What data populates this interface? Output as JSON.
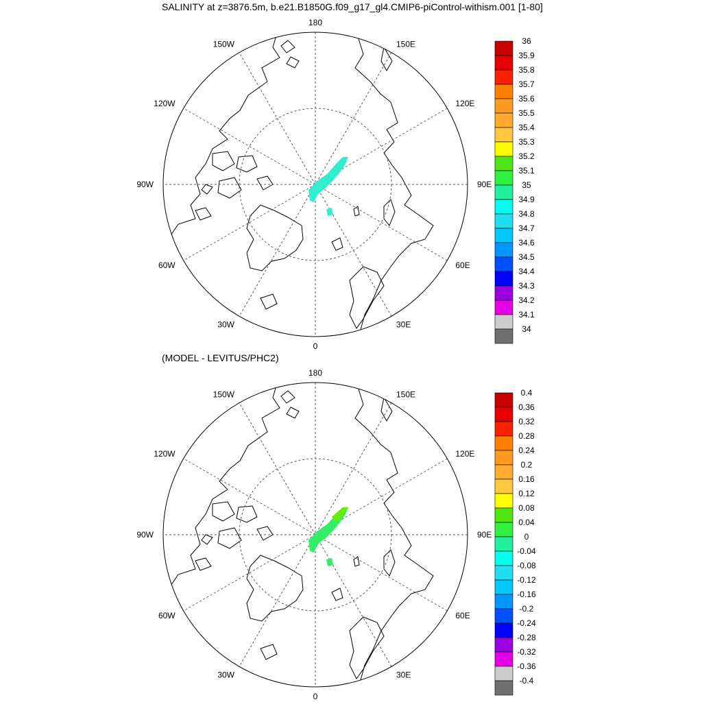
{
  "main_title": "SALINITY at z=3876.5m, b.e21.B1850G.f09_g17_gl4.CMIP6-piControl-withism.001 [1-80]",
  "sub_title": "(MODEL - LEVITUS/PHC2)",
  "longitude_labels": [
    "180",
    "150E",
    "120E",
    "90E",
    "60E",
    "30E",
    "0",
    "30W",
    "60W",
    "90W",
    "120W",
    "150W"
  ],
  "colors": {
    "land_outline": "#000000",
    "grid": "#555555",
    "field_top": "#33eecc",
    "field_bottom": "#33ee66",
    "field_bottom_tip": "#66ee00"
  },
  "panels": [
    {
      "id": "salinity",
      "colorbar": {
        "labels": [
          "36",
          "35.9",
          "35.8",
          "35.7",
          "35.6",
          "35.5",
          "35.4",
          "35.3",
          "35.2",
          "35.1",
          "35",
          "34.9",
          "34.8",
          "34.7",
          "34.6",
          "34.5",
          "34.4",
          "34.3",
          "34.2",
          "34.1",
          "34"
        ],
        "colors": [
          "#c80000",
          "#e60000",
          "#ff2000",
          "#ff8000",
          "#ff9a20",
          "#ffaa30",
          "#ffc840",
          "#ffff00",
          "#50e614",
          "#30f040",
          "#20f0a0",
          "#00ffee",
          "#20e0f0",
          "#00c8ff",
          "#0096ff",
          "#0050ff",
          "#0000ff",
          "#9b00e0",
          "#e600e6",
          "#cccccc",
          "#707070"
        ]
      }
    },
    {
      "id": "anomaly",
      "colorbar": {
        "labels": [
          "0.4",
          "0.36",
          "0.32",
          "0.28",
          "0.24",
          "0.2",
          "0.16",
          "0.12",
          "0.08",
          "0.04",
          "0",
          "-0.04",
          "-0.08",
          "-0.12",
          "-0.16",
          "-0.2",
          "-0.24",
          "-0.28",
          "-0.32",
          "-0.36",
          "-0.4"
        ],
        "colors": [
          "#c80000",
          "#e60000",
          "#ff2000",
          "#ff8000",
          "#ff9a20",
          "#ffaa30",
          "#ffc840",
          "#ffff00",
          "#50e614",
          "#30f040",
          "#20f0a0",
          "#00ffee",
          "#20e0f0",
          "#00c8ff",
          "#0096ff",
          "#0050ff",
          "#0000ff",
          "#9b00e0",
          "#e600e6",
          "#cccccc",
          "#707070"
        ]
      }
    }
  ]
}
